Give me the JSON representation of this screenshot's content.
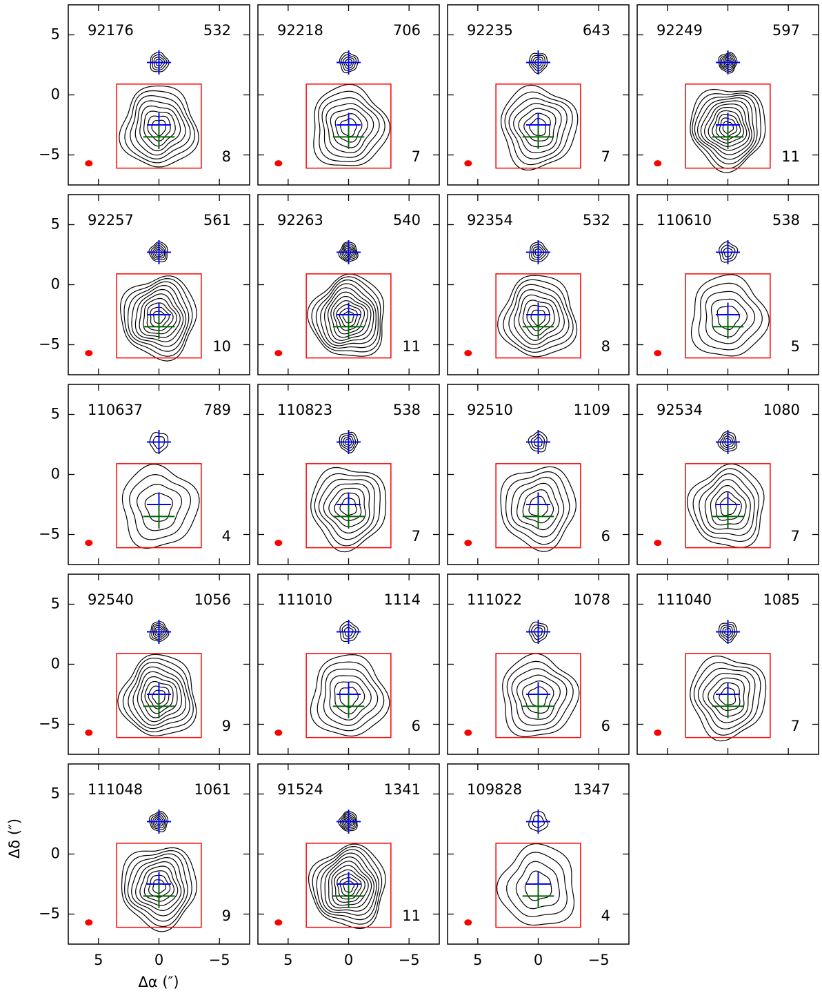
{
  "chart_data": {
    "type": "contour",
    "xlabel": "Δα (″)",
    "ylabel": "Δδ (″)",
    "xlim": [
      7.5,
      -7.5
    ],
    "ylim": [
      -7.5,
      7.5
    ],
    "xticks": [
      5,
      0,
      {
        "value": -5,
        "label": "−5"
      }
    ],
    "yticks": [
      5,
      0,
      {
        "value": -5,
        "label": "−5"
      }
    ],
    "box": {
      "x": [
        3.5,
        -3.5
      ],
      "y": [
        -6.1,
        0.9
      ],
      "color": "#ff0000"
    },
    "beam": {
      "x": 5.8,
      "y": -5.7,
      "color": "#ff0000"
    },
    "markers": [
      {
        "x": 0,
        "y": 2.7,
        "color": "#0000ff"
      },
      {
        "x": 0,
        "y": -2.5,
        "color": "#0000ff"
      },
      {
        "x": 0,
        "y": -3.5,
        "color": "#006400"
      }
    ],
    "panels": [
      {
        "id": "92176",
        "value": 532,
        "count": 8
      },
      {
        "id": "92218",
        "value": 706,
        "count": 7
      },
      {
        "id": "92235",
        "value": 643,
        "count": 7
      },
      {
        "id": "92249",
        "value": 597,
        "count": 11
      },
      {
        "id": "92257",
        "value": 561,
        "count": 10
      },
      {
        "id": "92263",
        "value": 540,
        "count": 11
      },
      {
        "id": "92354",
        "value": 532,
        "count": 8
      },
      {
        "id": "110610",
        "value": 538,
        "count": 5
      },
      {
        "id": "110637",
        "value": 789,
        "count": 4
      },
      {
        "id": "110823",
        "value": 538,
        "count": 7
      },
      {
        "id": "92510",
        "value": 1109,
        "count": 6
      },
      {
        "id": "92534",
        "value": 1080,
        "count": 7
      },
      {
        "id": "92540",
        "value": 1056,
        "count": 9
      },
      {
        "id": "111010",
        "value": 1114,
        "count": 6
      },
      {
        "id": "111022",
        "value": 1078,
        "count": 6
      },
      {
        "id": "111040",
        "value": 1085,
        "count": 7
      },
      {
        "id": "111048",
        "value": 1061,
        "count": 9
      },
      {
        "id": "91524",
        "value": 1341,
        "count": 11
      },
      {
        "id": "109828",
        "value": 1347,
        "count": 4
      }
    ]
  }
}
